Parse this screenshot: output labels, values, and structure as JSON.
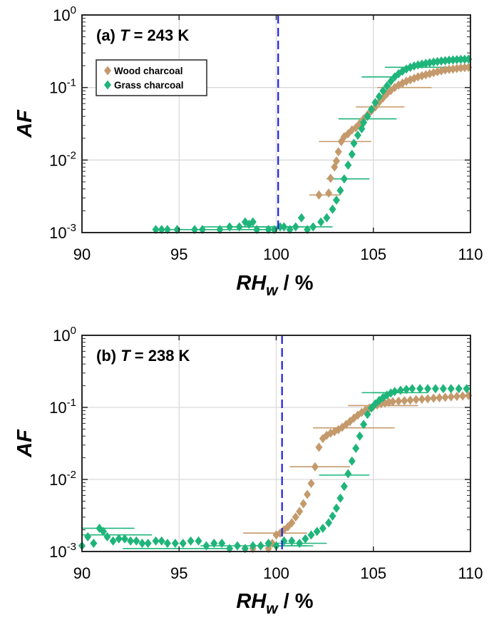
{
  "chart_data": [
    {
      "type": "scatter",
      "panel_label": "(a)",
      "temperature_var": "T",
      "temperature_text": " = 243 K",
      "xlabel": "RH",
      "xlabel_sub": "w",
      "xlabel_unit": " / %",
      "ylabel": "AF",
      "xlim": [
        90,
        110
      ],
      "ylim": [
        0.001,
        1
      ],
      "yscale": "log",
      "xticks": [
        90,
        95,
        100,
        105,
        110
      ],
      "xtick_labels": [
        "90",
        "95",
        "100",
        "105",
        "110"
      ],
      "ytick_base": "10",
      "ytick_exps": [
        "-3",
        "-2",
        "-1",
        "0"
      ],
      "grid": true,
      "vline": 100.1,
      "vline_color": "#1f1fe0",
      "legend": {
        "position": "top-left",
        "entries": [
          "Wood charcoal",
          "Grass charcoal"
        ]
      },
      "series": [
        {
          "name": "Wood charcoal",
          "color": "#c49a6c",
          "points": [
            [
              102.2,
              0.0033
            ],
            [
              102.7,
              0.0035
            ],
            [
              102.8,
              0.0056
            ],
            [
              103.0,
              0.008
            ],
            [
              103.1,
              0.0097
            ],
            [
              103.2,
              0.013
            ],
            [
              103.35,
              0.018
            ],
            [
              103.5,
              0.021
            ],
            [
              103.7,
              0.023
            ],
            [
              103.9,
              0.026
            ],
            [
              104.1,
              0.028
            ],
            [
              104.3,
              0.032
            ],
            [
              104.5,
              0.037
            ],
            [
              104.7,
              0.042
            ],
            [
              104.9,
              0.048
            ],
            [
              105.1,
              0.054
            ],
            [
              105.3,
              0.063
            ],
            [
              105.5,
              0.072
            ],
            [
              105.7,
              0.082
            ],
            [
              105.9,
              0.091
            ],
            [
              106.1,
              0.1
            ],
            [
              106.3,
              0.108
            ],
            [
              106.5,
              0.115
            ],
            [
              106.7,
              0.122
            ],
            [
              106.9,
              0.128
            ],
            [
              107.1,
              0.134
            ],
            [
              107.3,
              0.14
            ],
            [
              107.5,
              0.145
            ],
            [
              107.7,
              0.15
            ],
            [
              107.9,
              0.155
            ],
            [
              108.1,
              0.16
            ],
            [
              108.3,
              0.165
            ],
            [
              108.5,
              0.17
            ],
            [
              108.7,
              0.175
            ],
            [
              108.9,
              0.178
            ],
            [
              109.1,
              0.18
            ],
            [
              109.3,
              0.183
            ],
            [
              109.5,
              0.186
            ],
            [
              109.7,
              0.188
            ],
            [
              109.9,
              0.19
            ]
          ],
          "xerr": [
            [
              101.7,
              103.3,
              0.0033
            ],
            [
              102.2,
              104.9,
              0.018
            ],
            [
              104.1,
              106.6,
              0.054
            ],
            [
              105.2,
              108.0,
              0.1
            ]
          ]
        },
        {
          "name": "Grass charcoal",
          "color": "#1fb57a",
          "points": [
            [
              93.8,
              0.0011
            ],
            [
              94.1,
              0.0011
            ],
            [
              94.4,
              0.0011
            ],
            [
              94.9,
              0.0011
            ],
            [
              95.8,
              0.0011
            ],
            [
              96.2,
              0.0011
            ],
            [
              97.1,
              0.0011
            ],
            [
              97.6,
              0.0012
            ],
            [
              98.1,
              0.0012
            ],
            [
              98.4,
              0.0014
            ],
            [
              98.6,
              0.0013
            ],
            [
              98.8,
              0.0014
            ],
            [
              99.0,
              0.0011
            ],
            [
              99.6,
              0.0011
            ],
            [
              99.9,
              0.0011
            ],
            [
              100.2,
              0.0012
            ],
            [
              100.4,
              0.0012
            ],
            [
              100.7,
              0.0011
            ],
            [
              101.0,
              0.0012
            ],
            [
              101.3,
              0.0016
            ],
            [
              101.6,
              0.0011
            ],
            [
              101.9,
              0.0012
            ],
            [
              102.3,
              0.0014
            ],
            [
              102.6,
              0.0016
            ],
            [
              102.9,
              0.0021
            ],
            [
              103.1,
              0.0028
            ],
            [
              103.3,
              0.0038
            ],
            [
              103.5,
              0.0055
            ],
            [
              103.7,
              0.0085
            ],
            [
              103.9,
              0.012
            ],
            [
              104.0,
              0.017
            ],
            [
              104.2,
              0.022
            ],
            [
              104.4,
              0.027
            ],
            [
              104.5,
              0.033
            ],
            [
              104.7,
              0.04
            ],
            [
              104.9,
              0.05
            ],
            [
              105.1,
              0.062
            ],
            [
              105.3,
              0.075
            ],
            [
              105.5,
              0.09
            ],
            [
              105.7,
              0.105
            ],
            [
              105.9,
              0.122
            ],
            [
              106.1,
              0.14
            ],
            [
              106.3,
              0.155
            ],
            [
              106.5,
              0.168
            ],
            [
              106.7,
              0.18
            ],
            [
              106.9,
              0.19
            ],
            [
              107.1,
              0.198
            ],
            [
              107.3,
              0.205
            ],
            [
              107.5,
              0.21
            ],
            [
              107.7,
              0.215
            ],
            [
              107.9,
              0.22
            ],
            [
              108.1,
              0.224
            ],
            [
              108.3,
              0.228
            ],
            [
              108.5,
              0.232
            ],
            [
              108.7,
              0.235
            ],
            [
              108.9,
              0.238
            ],
            [
              109.1,
              0.24
            ],
            [
              109.3,
              0.242
            ],
            [
              109.5,
              0.244
            ],
            [
              109.7,
              0.245
            ],
            [
              109.9,
              0.246
            ]
          ],
          "xerr": [
            [
              94.1,
              99.6,
              0.0011
            ],
            [
              96.2,
              100.8,
              0.0012
            ],
            [
              97.6,
              101.4,
              0.0012
            ],
            [
              100.0,
              102.9,
              0.0012
            ],
            [
              102.6,
              104.8,
              0.0055
            ],
            [
              103.2,
              106.2,
              0.037
            ],
            [
              104.4,
              106.2,
              0.14
            ],
            [
              105.6,
              109.1,
              0.19
            ]
          ]
        }
      ]
    },
    {
      "type": "scatter",
      "panel_label": "(b)",
      "temperature_var": "T",
      "temperature_text": " = 238 K",
      "xlabel": "RH",
      "xlabel_sub": "w",
      "xlabel_unit": " / %",
      "ylabel": "AF",
      "xlim": [
        90,
        110
      ],
      "ylim": [
        0.001,
        1
      ],
      "yscale": "log",
      "xticks": [
        90,
        95,
        100,
        105,
        110
      ],
      "xtick_labels": [
        "90",
        "95",
        "100",
        "105",
        "110"
      ],
      "ytick_base": "10",
      "ytick_exps": [
        "-3",
        "-2",
        "-1",
        "0"
      ],
      "grid": true,
      "vline": 100.3,
      "vline_color": "#1f1fe0",
      "series": [
        {
          "name": "Wood charcoal",
          "color": "#c49a6c",
          "points": [
            [
              98.4,
              0.0011
            ],
            [
              98.8,
              0.0011
            ],
            [
              99.2,
              0.0012
            ],
            [
              99.6,
              0.0011
            ],
            [
              99.8,
              0.0013
            ],
            [
              100.0,
              0.0017
            ],
            [
              100.2,
              0.0018
            ],
            [
              100.4,
              0.002
            ],
            [
              100.6,
              0.0022
            ],
            [
              100.8,
              0.0025
            ],
            [
              101.0,
              0.003
            ],
            [
              101.2,
              0.0036
            ],
            [
              101.4,
              0.0046
            ],
            [
              101.6,
              0.0062
            ],
            [
              101.8,
              0.0088
            ],
            [
              102.0,
              0.015
            ],
            [
              102.2,
              0.028
            ],
            [
              102.4,
              0.037
            ],
            [
              102.6,
              0.041
            ],
            [
              102.8,
              0.044
            ],
            [
              103.0,
              0.046
            ],
            [
              103.2,
              0.049
            ],
            [
              103.4,
              0.053
            ],
            [
              103.6,
              0.058
            ],
            [
              103.8,
              0.064
            ],
            [
              104.0,
              0.071
            ],
            [
              104.2,
              0.078
            ],
            [
              104.4,
              0.085
            ],
            [
              104.6,
              0.092
            ],
            [
              104.8,
              0.098
            ],
            [
              105.0,
              0.103
            ],
            [
              105.2,
              0.108
            ],
            [
              105.4,
              0.112
            ],
            [
              105.6,
              0.115
            ],
            [
              105.8,
              0.118
            ],
            [
              106.0,
              0.12
            ],
            [
              106.3,
              0.122
            ],
            [
              106.6,
              0.124
            ],
            [
              106.9,
              0.126
            ],
            [
              107.2,
              0.128
            ],
            [
              107.5,
              0.13
            ],
            [
              107.8,
              0.132
            ],
            [
              108.1,
              0.134
            ],
            [
              108.4,
              0.136
            ],
            [
              108.7,
              0.138
            ],
            [
              109.0,
              0.14
            ],
            [
              109.3,
              0.142
            ],
            [
              109.6,
              0.144
            ],
            [
              109.9,
              0.146
            ]
          ],
          "xerr": [
            [
              98.3,
              101.6,
              0.0018
            ],
            [
              100.7,
              103.8,
              0.015
            ],
            [
              101.9,
              104.5,
              0.052
            ],
            [
              103.8,
              106.1,
              0.052
            ],
            [
              103.7,
              107.3,
              0.106
            ]
          ]
        },
        {
          "name": "Grass charcoal",
          "color": "#1fb57a",
          "points": [
            [
              90.0,
              0.0012
            ],
            [
              90.3,
              0.0016
            ],
            [
              90.6,
              0.0013
            ],
            [
              90.9,
              0.0021
            ],
            [
              91.1,
              0.0019
            ],
            [
              91.3,
              0.0016
            ],
            [
              91.6,
              0.0014
            ],
            [
              91.9,
              0.0015
            ],
            [
              92.2,
              0.0015
            ],
            [
              92.5,
              0.0014
            ],
            [
              92.8,
              0.0014
            ],
            [
              93.1,
              0.0013
            ],
            [
              93.4,
              0.0013
            ],
            [
              93.8,
              0.0014
            ],
            [
              94.1,
              0.0014
            ],
            [
              94.4,
              0.0013
            ],
            [
              94.8,
              0.0013
            ],
            [
              95.2,
              0.0013
            ],
            [
              95.6,
              0.0014
            ],
            [
              96.0,
              0.0014
            ],
            [
              96.4,
              0.0012
            ],
            [
              96.8,
              0.0013
            ],
            [
              97.2,
              0.0013
            ],
            [
              97.6,
              0.0011
            ],
            [
              98.0,
              0.0012
            ],
            [
              98.4,
              0.0011
            ],
            [
              98.8,
              0.0012
            ],
            [
              99.2,
              0.0012
            ],
            [
              99.6,
              0.0013
            ],
            [
              100.0,
              0.0012
            ],
            [
              100.4,
              0.0014
            ],
            [
              100.8,
              0.0014
            ],
            [
              101.2,
              0.0013
            ],
            [
              101.5,
              0.0015
            ],
            [
              101.8,
              0.0017
            ],
            [
              102.1,
              0.0019
            ],
            [
              102.4,
              0.0021
            ],
            [
              102.7,
              0.0025
            ],
            [
              102.9,
              0.0031
            ],
            [
              103.1,
              0.004
            ],
            [
              103.3,
              0.0055
            ],
            [
              103.5,
              0.008
            ],
            [
              103.7,
              0.012
            ],
            [
              103.9,
              0.018
            ],
            [
              104.1,
              0.027
            ],
            [
              104.3,
              0.04
            ],
            [
              104.5,
              0.058
            ],
            [
              104.7,
              0.08
            ],
            [
              104.9,
              0.098
            ],
            [
              105.1,
              0.112
            ],
            [
              105.3,
              0.125
            ],
            [
              105.5,
              0.137
            ],
            [
              105.7,
              0.148
            ],
            [
              105.9,
              0.158
            ],
            [
              106.1,
              0.166
            ],
            [
              106.4,
              0.173
            ],
            [
              106.7,
              0.178
            ],
            [
              107.0,
              0.182
            ],
            [
              107.4,
              0.182
            ],
            [
              107.8,
              0.182
            ],
            [
              108.2,
              0.182
            ],
            [
              108.6,
              0.182
            ],
            [
              109.0,
              0.182
            ],
            [
              109.4,
              0.182
            ],
            [
              109.8,
              0.182
            ]
          ],
          "xerr": [
            [
              90.0,
              92.7,
              0.0021
            ],
            [
              90.0,
              93.6,
              0.0017
            ],
            [
              92.1,
              97.6,
              0.0011
            ],
            [
              96.1,
              101.9,
              0.0012
            ],
            [
              99.6,
              101.6,
              0.0012
            ],
            [
              100.0,
              102.6,
              0.0013
            ],
            [
              102.2,
              104.8,
              0.0115
            ],
            [
              104.9,
              107.8,
              0.16
            ],
            [
              104.4,
              106.8,
              0.16
            ]
          ]
        }
      ]
    }
  ]
}
